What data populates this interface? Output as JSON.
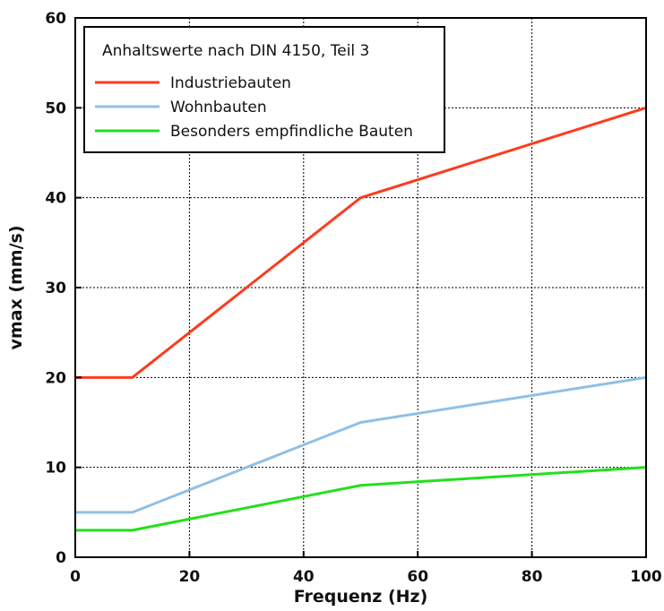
{
  "chart_data": {
    "type": "line",
    "title": "",
    "xlabel": "Frequenz (Hz)",
    "ylabel": "vmax (mm/s)",
    "xlim": [
      0,
      100
    ],
    "ylim": [
      0,
      60
    ],
    "xticks": [
      0,
      20,
      40,
      60,
      80,
      100
    ],
    "yticks": [
      0,
      10,
      20,
      30,
      40,
      50,
      60
    ],
    "grid": true,
    "legend_title": "Anhaltswerte nach DIN 4150, Teil 3",
    "legend_position": "top-left",
    "series": [
      {
        "name": "Industriebauten",
        "color": "#ff3b1f",
        "x": [
          0,
          10,
          50,
          100
        ],
        "y": [
          20,
          20,
          40,
          50
        ]
      },
      {
        "name": "Wohnbauten",
        "color": "#8fc0e6",
        "x": [
          0,
          10,
          50,
          100
        ],
        "y": [
          5,
          5,
          15,
          20
        ]
      },
      {
        "name": "Besonders empfindliche Bauten",
        "color": "#22e01a",
        "x": [
          0,
          10,
          50,
          100
        ],
        "y": [
          3,
          3,
          8,
          10
        ]
      }
    ]
  }
}
